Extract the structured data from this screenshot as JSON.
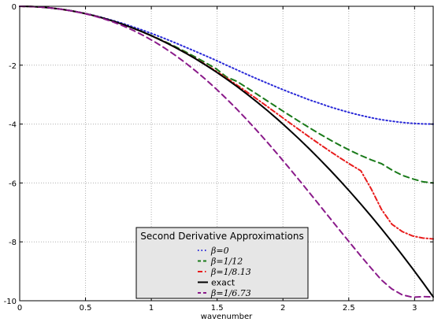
{
  "chart_data": {
    "type": "line",
    "xlabel": "wavenumber",
    "ylabel": "",
    "xlim": [
      0,
      3.14159
    ],
    "ylim": [
      -10,
      0
    ],
    "xticks": [
      0,
      0.5,
      1,
      1.5,
      2,
      2.5,
      3
    ],
    "xtick_labels": [
      "0",
      "0.5",
      "1",
      "1.5",
      "2",
      "2.5",
      "3"
    ],
    "yticks": [
      0,
      -2,
      -4,
      -6,
      -8,
      -10
    ],
    "ytick_labels": [
      "0",
      "-2",
      "-4",
      "-6",
      "-8",
      "-10"
    ],
    "grid": true,
    "legend": {
      "title": "Second Derivative Approximations",
      "placement": "lower-center"
    },
    "x": [
      0,
      0.0785,
      0.1571,
      0.2356,
      0.3142,
      0.3927,
      0.4712,
      0.5498,
      0.6283,
      0.7069,
      0.7854,
      0.8639,
      0.9425,
      1.021,
      1.0996,
      1.1781,
      1.2566,
      1.3352,
      1.4137,
      1.4923,
      1.5708,
      1.6493,
      1.7279,
      1.8064,
      1.885,
      1.9635,
      2.042,
      2.1206,
      2.1991,
      2.2777,
      2.3562,
      2.4347,
      2.5133,
      2.5918,
      2.6704,
      2.7489,
      2.8274,
      2.906,
      2.9845,
      3.0631,
      3.1416
    ],
    "series": [
      {
        "name": "β=0",
        "label_text": "β=0",
        "color": "#2a2ad8",
        "dash": "dotted",
        "values": [
          0,
          -0.0062,
          -0.0246,
          -0.055,
          -0.0979,
          -0.1519,
          -0.2173,
          -0.2936,
          -0.382,
          -0.4796,
          -0.5858,
          -0.7032,
          -0.8244,
          -0.9549,
          -1.0918,
          -1.2337,
          -1.382,
          -1.5307,
          -1.684,
          -1.8362,
          -2,
          -2.1564,
          -2.3164,
          -2.4694,
          -2.618,
          -2.7651,
          -2.9067,
          -3.0402,
          -3.1756,
          -3.2934,
          -3.4142,
          -3.5184,
          -3.618,
          -3.7053,
          -3.7837,
          -3.8519,
          -3.9021,
          -3.9447,
          -3.9754,
          -3.9938,
          -4
        ]
      },
      {
        "name": "β=1/12",
        "label_text": "β=1/12",
        "color": "#1a7a1a",
        "dash": "dashed",
        "values": [
          0,
          -0.0062,
          -0.0247,
          -0.0555,
          -0.0987,
          -0.1543,
          -0.222,
          -0.302,
          -0.394,
          -0.498,
          -0.614,
          -0.742,
          -0.88,
          -1.03,
          -1.191,
          -1.36,
          -1.539,
          -1.725,
          -1.92,
          -2.121,
          -2.4,
          -2.547,
          -2.77,
          -2.995,
          -3.225,
          -3.453,
          -3.68,
          -3.903,
          -4.12,
          -4.331,
          -4.533,
          -4.724,
          -4.903,
          -5.067,
          -5.215,
          -5.345,
          -5.56,
          -5.74,
          -5.86,
          -5.96,
          -6
        ]
      },
      {
        "name": "β=1/8.13",
        "label_text": "β=1/8.13",
        "color": "#e81c1c",
        "dash": "dash-dot",
        "values": [
          0,
          -0.0062,
          -0.0247,
          -0.0555,
          -0.0987,
          -0.1543,
          -0.222,
          -0.302,
          -0.395,
          -0.5,
          -0.617,
          -0.746,
          -0.888,
          -1.042,
          -1.208,
          -1.386,
          -1.575,
          -1.775,
          -1.985,
          -2.205,
          -2.434,
          -2.671,
          -2.915,
          -3.164,
          -3.417,
          -3.673,
          -3.929,
          -4.183,
          -4.434,
          -4.68,
          -4.92,
          -5.152,
          -5.375,
          -5.586,
          -6.2,
          -6.9,
          -7.4,
          -7.65,
          -7.8,
          -7.87,
          -7.9
        ]
      },
      {
        "name": "exact",
        "label_text": "exact",
        "color": "#000000",
        "dash": "solid",
        "values": [
          0,
          -0.0062,
          -0.0247,
          -0.0555,
          -0.0987,
          -0.1542,
          -0.2221,
          -0.3023,
          -0.3948,
          -0.4997,
          -0.6169,
          -0.7464,
          -0.8883,
          -1.0425,
          -1.2091,
          -1.388,
          -1.5791,
          -1.7827,
          -1.9986,
          -2.2269,
          -2.4674,
          -2.7202,
          -2.9855,
          -3.263,
          -3.5531,
          -3.8553,
          -4.1698,
          -4.4968,
          -4.8362,
          -5.1879,
          -5.5517,
          -5.928,
          -6.3168,
          -6.7175,
          -7.1308,
          -7.5564,
          -7.9943,
          -8.4448,
          -8.9073,
          -9.3823,
          -9.8696
        ]
      },
      {
        "name": "β=1/6.73",
        "label_text": "β=1/6.73",
        "color": "#8a1a8a",
        "dash": "dashed",
        "values": [
          0,
          -0.0062,
          -0.0247,
          -0.0557,
          -0.0993,
          -0.156,
          -0.226,
          -0.31,
          -0.41,
          -0.528,
          -0.664,
          -0.82,
          -0.998,
          -1.195,
          -1.413,
          -1.652,
          -1.911,
          -2.19,
          -2.488,
          -2.805,
          -3.14,
          -3.492,
          -3.86,
          -4.243,
          -4.638,
          -5.046,
          -5.463,
          -5.888,
          -6.319,
          -6.754,
          -7.19,
          -7.625,
          -8.057,
          -8.482,
          -8.897,
          -9.298,
          -9.6,
          -9.8,
          -9.88,
          -9.86,
          -9.87
        ]
      }
    ]
  }
}
